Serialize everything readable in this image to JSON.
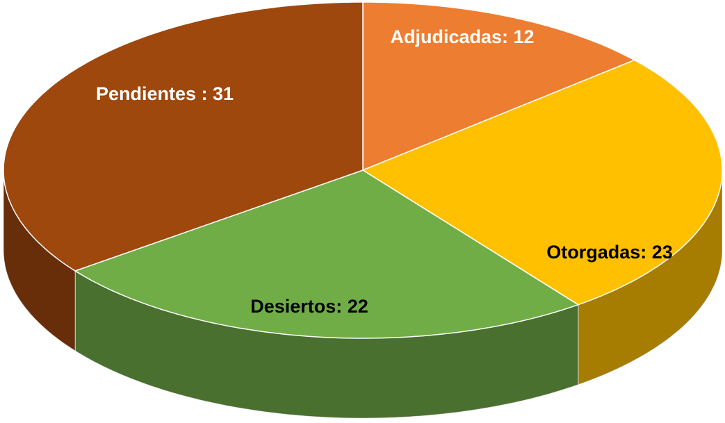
{
  "chart_data": {
    "type": "pie",
    "three_d": true,
    "values": [
      12,
      23,
      22,
      31
    ],
    "value_labels": [
      "Adjudicadas: 12",
      "Otorgadas: 23",
      "Desiertos: 22",
      "Pendientes : 31"
    ],
    "colors": [
      "#ED7D31",
      "#FFC000",
      "#70AD47",
      "#9E480E"
    ],
    "label_colors": [
      "#ffffff",
      "#000000",
      "#000000",
      "#ffffff"
    ],
    "start_angle": 0,
    "direction": "clockwise"
  }
}
